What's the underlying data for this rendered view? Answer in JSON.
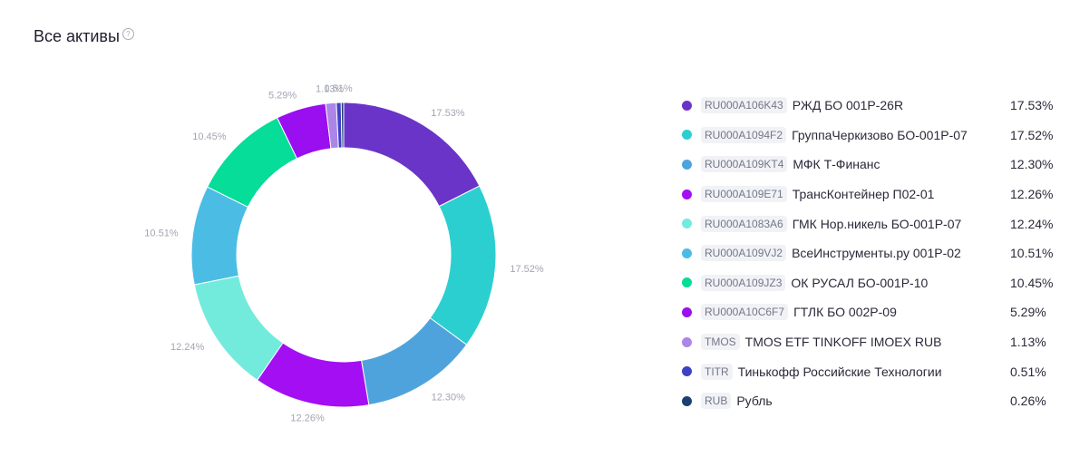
{
  "header": {
    "title": "Все активы",
    "help_icon": "question-circle-icon",
    "help_glyph": "?"
  },
  "chart_data": {
    "type": "pie",
    "donut": true,
    "start_angle_deg": 0,
    "direction": "clockwise",
    "slices": [
      {
        "ticker": "RU000A106K43",
        "name": "РЖД БО 001P-26R",
        "value": 17.53,
        "label": "17.53%",
        "color": "#6a34c8"
      },
      {
        "ticker": "RU000A1094F2",
        "name": "ГруппаЧеркизово БО-001Р-07",
        "value": 17.52,
        "label": "17.52%",
        "color": "#2ccfcf"
      },
      {
        "ticker": "RU000A109KT4",
        "name": "МФК Т-Финанс",
        "value": 12.3,
        "label": "12.30%",
        "color": "#4fa3dc"
      },
      {
        "ticker": "RU000A109E71",
        "name": "ТрансКонтейнер П02-01",
        "value": 12.26,
        "label": "12.26%",
        "color": "#a30ff2"
      },
      {
        "ticker": "RU000A1083A6",
        "name": "ГМК Нор.никель БО-001Р-07",
        "value": 12.24,
        "label": "12.24%",
        "color": "#73ebdc"
      },
      {
        "ticker": "RU000A109VJ2",
        "name": "ВсеИнструменты.ру 001P-02",
        "value": 10.51,
        "label": "10.51%",
        "color": "#4bbde4"
      },
      {
        "ticker": "RU000A109JZ3",
        "name": "ОК РУСАЛ БО-001Р-10",
        "value": 10.45,
        "label": "10.45%",
        "color": "#05dd98"
      },
      {
        "ticker": "RU000A10C6F7",
        "name": "ГТЛК БО 002Р-09",
        "value": 5.29,
        "label": "5.29%",
        "color": "#9a0ff0"
      },
      {
        "ticker": "TMOS",
        "name": "TMOS ETF TINKOFF IMOEX RUB",
        "value": 1.13,
        "label": "1.13%",
        "color": "#ab86e6"
      },
      {
        "ticker": "TITR",
        "name": "Тинькофф Российские Технологии",
        "value": 0.51,
        "label": "0.51%",
        "color": "#3e40c6"
      },
      {
        "ticker": "RUB",
        "name": "Рубль",
        "value": 0.26,
        "label": "0.26%",
        "color": "#1c3f73"
      }
    ]
  }
}
